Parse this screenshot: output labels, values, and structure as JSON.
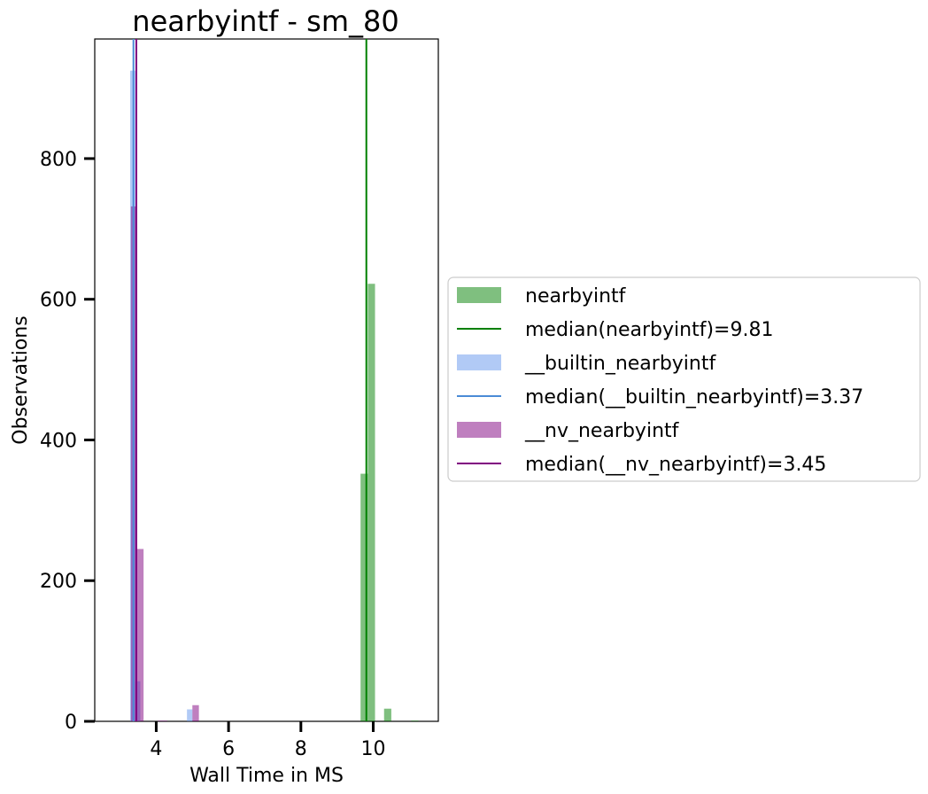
{
  "chart_data": {
    "type": "bar",
    "title": "nearbyintf - sm_80",
    "xlabel": "Wall Time in MS",
    "ylabel": "Observations",
    "xlim": [
      2.3,
      11.8
    ],
    "ylim": [
      0,
      970
    ],
    "xticks": [
      4,
      6,
      8,
      10
    ],
    "yticks": [
      0,
      200,
      400,
      600,
      800
    ],
    "grid": false,
    "legend_position": "right",
    "series": [
      {
        "name": "nearbyintf",
        "color": "#008000",
        "alpha": 0.5,
        "bins": [
          {
            "x0": 9.65,
            "x1": 9.85,
            "y": 352
          },
          {
            "x0": 9.85,
            "x1": 10.05,
            "y": 622
          },
          {
            "x0": 10.3,
            "x1": 10.5,
            "y": 18
          },
          {
            "x0": 11.05,
            "x1": 11.25,
            "y": 1
          }
        ],
        "median": 9.81,
        "median_label": "median(nearbyintf)=9.81",
        "median_color": "#008000"
      },
      {
        "name": "__builtin_nearbyintf",
        "color": "#6495ED",
        "alpha": 0.5,
        "bins": [
          {
            "x0": 3.28,
            "x1": 3.42,
            "y": 925
          },
          {
            "x0": 3.42,
            "x1": 3.56,
            "y": 57
          },
          {
            "x0": 4.85,
            "x1": 5.0,
            "y": 17
          }
        ],
        "median": 3.37,
        "median_label": "median(__builtin_nearbyintf)=3.37",
        "median_color": "#4B8BD6"
      },
      {
        "name": "__nv_nearbyintf",
        "color": "#800080",
        "alpha": 0.5,
        "bins": [
          {
            "x0": 3.3,
            "x1": 3.45,
            "y": 732
          },
          {
            "x0": 3.45,
            "x1": 3.65,
            "y": 245
          },
          {
            "x0": 4.05,
            "x1": 4.3,
            "y": 1
          },
          {
            "x0": 5.0,
            "x1": 5.18,
            "y": 23
          }
        ],
        "median": 3.45,
        "median_label": "median(__nv_nearbyintf)=3.45",
        "median_color": "#800080"
      }
    ]
  }
}
